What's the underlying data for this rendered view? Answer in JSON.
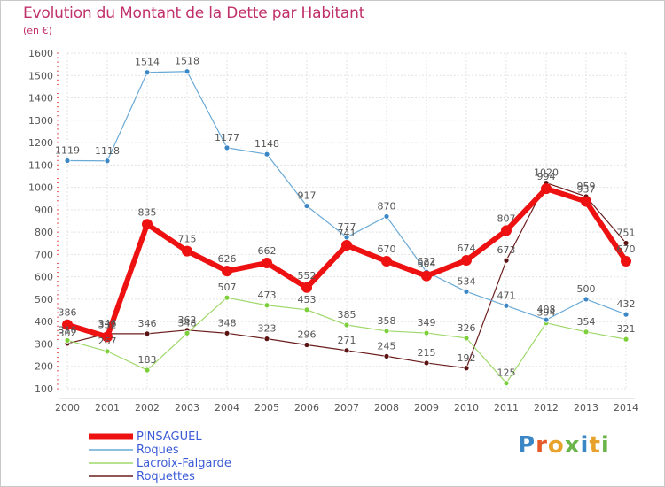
{
  "header": {
    "title": "Evolution du Montant de la Dette par Habitant",
    "subtitle": "(en €)"
  },
  "logo": {
    "letters": [
      "P",
      "r",
      "o",
      "x",
      "i",
      "t",
      "i"
    ],
    "colors": [
      "#3b87c6",
      "#e65a2a",
      "#e6a22a",
      "#6bb54a",
      "#3b87c6",
      "#e6a22a",
      "#6bb54a"
    ]
  },
  "chart_data": {
    "type": "line",
    "title": "Evolution du Montant de la Dette par Habitant",
    "subtitle": "(en €)",
    "xlabel": "",
    "ylabel": "",
    "categories": [
      "2000",
      "2001",
      "2002",
      "2003",
      "2004",
      "2005",
      "2006",
      "2007",
      "2008",
      "2009",
      "2010",
      "2011",
      "2012",
      "2013",
      "2014"
    ],
    "ylim": [
      100,
      1600
    ],
    "yticks": [
      100,
      200,
      300,
      400,
      500,
      600,
      700,
      800,
      900,
      1000,
      1100,
      1200,
      1300,
      1400,
      1500,
      1600
    ],
    "grid": true,
    "legend_position": "bottom-left",
    "series": [
      {
        "name": "Roquettes",
        "color": "#6b1d1d",
        "dot": "#5a1212",
        "width": 1.2,
        "radius": 3,
        "values": [
          302,
          346,
          346,
          362,
          348,
          323,
          296,
          271,
          245,
          215,
          192,
          673,
          1020,
          959,
          751
        ],
        "labels": [
          "302",
          "346",
          "346",
          "362",
          "348",
          "323",
          "296",
          "271",
          "245",
          "215",
          "192",
          "673",
          "1020",
          "959",
          "751"
        ]
      },
      {
        "name": "Lacroix-Falgarde",
        "color": "#9fd86a",
        "dot": "#7ccf3a",
        "width": 1.2,
        "radius": 3,
        "values": [
          316,
          267,
          183,
          348,
          507,
          473,
          453,
          385,
          358,
          349,
          326,
          125,
          394,
          354,
          321
        ],
        "labels": [
          "316",
          "267",
          "183",
          "348",
          "507",
          "473",
          "453",
          "385",
          "358",
          "349",
          "326",
          "125",
          "394",
          "354",
          "321"
        ]
      },
      {
        "name": "Roques",
        "color": "#6aaad6",
        "dot": "#3b87c6",
        "width": 1.2,
        "radius": 3,
        "values": [
          1119,
          1118,
          1514,
          1518,
          1177,
          1148,
          917,
          777,
          870,
          622,
          534,
          471,
          408,
          500,
          432
        ],
        "labels": [
          "1119",
          "1118",
          "1514",
          "1518",
          "1177",
          "1148",
          "917",
          "777",
          "870",
          "622",
          "534",
          "471",
          "408",
          "500",
          "432"
        ]
      },
      {
        "name": "PINSAGUEL",
        "color": "#ee1111",
        "dot": "#ee1111",
        "width": 6,
        "radius": 6,
        "values": [
          386,
          332,
          835,
          715,
          626,
          662,
          552,
          741,
          670,
          604,
          674,
          807,
          994,
          937,
          670
        ],
        "labels": [
          "386",
          "332",
          "835",
          "715",
          "626",
          "662",
          "552",
          "741",
          "670",
          "604",
          "674",
          "807",
          "994",
          "937",
          "670"
        ]
      }
    ],
    "legend_order": [
      "PINSAGUEL",
      "Roques",
      "Lacroix-Falgarde",
      "Roquettes"
    ]
  }
}
